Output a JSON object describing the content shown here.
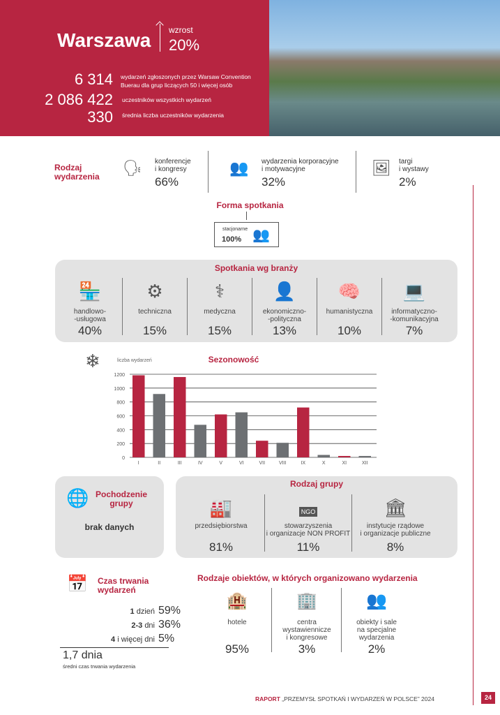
{
  "header": {
    "city": "Warszawa",
    "growth_label": "wzrost",
    "growth_value": "20%",
    "stats": [
      {
        "value": "6 314",
        "label1": "wydarzeń zgłoszonych przez Warsaw Convention",
        "label2": "Buerau dla grup liczących 50 i więcej osób"
      },
      {
        "value": "2 086 422",
        "label1": "uczestników wszystkich wydarzeń"
      },
      {
        "value": "330",
        "label1": "średnia liczba uczestników wydarzenia"
      }
    ]
  },
  "event_type": {
    "title1": "Rodzaj",
    "title2": "wydarzenia",
    "items": [
      {
        "l1": "konferencje",
        "l2": "i kongresy",
        "pct": "66%"
      },
      {
        "l1": "wydarzenia korporacyjne",
        "l2": "i motywacyjne",
        "pct": "32%"
      },
      {
        "l1": "targi",
        "l2": "i wystawy",
        "pct": "2%"
      }
    ]
  },
  "format": {
    "title": "Forma spotkania",
    "label": "stacjonarne",
    "pct": "100%"
  },
  "industry": {
    "title": "Spotkania wg branży",
    "items": [
      {
        "l1": "handlowo-",
        "l2": "-usługowa",
        "pct": "40%"
      },
      {
        "l1": "techniczna",
        "l2": "",
        "pct": "15%"
      },
      {
        "l1": "medyczna",
        "l2": "",
        "pct": "15%"
      },
      {
        "l1": "ekonomiczno-",
        "l2": "-polityczna",
        "pct": "13%"
      },
      {
        "l1": "humanistyczna",
        "l2": "",
        "pct": "10%"
      },
      {
        "l1": "informatyczno-",
        "l2": "-komunikacyjna",
        "pct": "7%"
      }
    ]
  },
  "chart_data": {
    "type": "bar",
    "title": "Sezonowość",
    "ylabel": "liczba wydarzeń",
    "xlabel": "",
    "categories": [
      "I",
      "II",
      "III",
      "IV",
      "V",
      "VI",
      "VII",
      "VIII",
      "IX",
      "X",
      "XI",
      "XII"
    ],
    "values": [
      1185,
      915,
      1160,
      470,
      620,
      650,
      240,
      210,
      720,
      35,
      20,
      20
    ],
    "colors": [
      "#b72541",
      "#6d7073",
      "#b72541",
      "#6d7073",
      "#b72541",
      "#6d7073",
      "#b72541",
      "#6d7073",
      "#b72541",
      "#6d7073",
      "#b72541",
      "#6d7073"
    ],
    "ylim": [
      0,
      1200
    ],
    "yticks": [
      "0",
      "200",
      "400",
      "600",
      "800",
      "1000",
      "1200"
    ],
    "grid": true
  },
  "origin": {
    "title1": "Pochodzenie",
    "title2": "grupy",
    "value": "brak danych"
  },
  "group": {
    "title": "Rodzaj grupy",
    "items": [
      {
        "l1": "przedsiębiorstwa",
        "l2": "",
        "pct": "81%"
      },
      {
        "l1": "stowarzyszenia",
        "l2": "i organizacje NON PROFIT",
        "pct": "11%",
        "badge": "NGO"
      },
      {
        "l1": "instytucje rządowe",
        "l2": "i organizacje publiczne",
        "pct": "8%"
      }
    ]
  },
  "duration": {
    "title1": "Czas trwania",
    "title2": "wydarzeń",
    "rows": [
      {
        "n": "1",
        "unit": "dzień",
        "pct": "59%"
      },
      {
        "n": "2-3",
        "unit": "dni",
        "pct": "36%"
      },
      {
        "n": "4",
        "unit": "i więcej dni",
        "pct": "5%"
      }
    ],
    "avg": "1,7 dnia",
    "avg_label": "średni czas trwania wydarzenia"
  },
  "venues": {
    "title": "Rodzaje obiektów, w których organizowano wydarzenia",
    "items": [
      {
        "l1": "hotele",
        "l2": "",
        "l3": "",
        "pct": "95%",
        "badge": "HOTEL"
      },
      {
        "l1": "centra",
        "l2": "wystawiennicze",
        "l3": "i kongresowe",
        "pct": "3%"
      },
      {
        "l1": "obiekty i sale",
        "l2": "na specjalne",
        "l3": "wydarzenia",
        "pct": "2%"
      }
    ]
  },
  "footer": {
    "report": "RAPORT",
    "title": "„PRZEMYSŁ SPOTKAŃ I WYDARZEŃ W POLSCE” 2024",
    "page": "24"
  },
  "colors": {
    "accent": "#b72541",
    "gray": "#6d7073"
  }
}
